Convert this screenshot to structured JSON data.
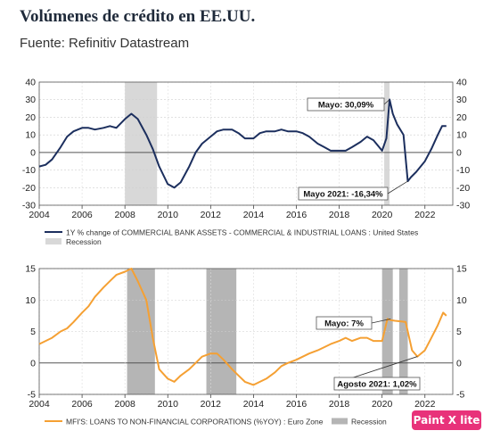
{
  "title": "Volúmenes de crédito en EE.UU.",
  "source": "Fuente: Refinitiv Datastream",
  "watermark": "Paint X lite",
  "colors": {
    "us_line": "#1c2f5e",
    "ez_line": "#f5a033",
    "recession_us": "#d8d8d8",
    "recession_ez": "#b5b5b5"
  },
  "chart_data": [
    {
      "type": "line",
      "x_ticks": [
        "2004",
        "2006",
        "2008",
        "2010",
        "2012",
        "2014",
        "2016",
        "2018",
        "2020",
        "2022"
      ],
      "ylim": [
        -30,
        40
      ],
      "y_ticks": [
        "-30",
        "-20",
        "-10",
        "0",
        "10",
        "20",
        "30",
        "40"
      ],
      "grid": true,
      "series": [
        {
          "name": "1Y % change of COMMERCIAL BANK ASSETS - COMMERCIAL & INDUSTRIAL LOANS : United States",
          "x": [
            2004.0,
            2004.3,
            2004.6,
            2005.0,
            2005.3,
            2005.6,
            2006.0,
            2006.3,
            2006.6,
            2007.0,
            2007.3,
            2007.6,
            2008.0,
            2008.3,
            2008.6,
            2009.0,
            2009.3,
            2009.6,
            2010.0,
            2010.3,
            2010.6,
            2011.0,
            2011.3,
            2011.6,
            2012.0,
            2012.3,
            2012.6,
            2013.0,
            2013.3,
            2013.6,
            2014.0,
            2014.3,
            2014.6,
            2015.0,
            2015.3,
            2015.6,
            2016.0,
            2016.3,
            2016.6,
            2017.0,
            2017.3,
            2017.6,
            2018.0,
            2018.3,
            2018.6,
            2019.0,
            2019.3,
            2019.6,
            2020.0,
            2020.2,
            2020.35,
            2020.5,
            2020.7,
            2021.0,
            2021.2,
            2021.35,
            2021.6,
            2022.0,
            2022.3,
            2022.6,
            2022.8,
            2023.0
          ],
          "y": [
            -8,
            -7,
            -4,
            3,
            9,
            12,
            14,
            14,
            13,
            14,
            15,
            14,
            19,
            22,
            19,
            10,
            2,
            -8,
            -18,
            -20,
            -17,
            -8,
            0,
            5,
            9,
            12,
            13,
            13,
            11,
            8,
            8,
            11,
            12,
            12,
            13,
            12,
            12,
            11,
            9,
            5,
            3,
            1,
            1,
            1,
            3,
            6,
            9,
            7,
            1,
            8,
            30.09,
            22,
            16,
            10,
            -16.34,
            -14,
            -11,
            -5,
            2,
            10,
            15,
            15
          ]
        }
      ],
      "recessions": [
        [
          2008.0,
          2009.5
        ],
        [
          2020.1,
          2020.35
        ]
      ],
      "annotations": [
        {
          "text": "Mayo: 30,09%",
          "x": 2020.35,
          "y": 30.09
        },
        {
          "text": "Mayo 2021: -16,34%",
          "x": 2021.2,
          "y": -16.34
        }
      ],
      "legend": [
        "1Y % change of COMMERCIAL BANK ASSETS - COMMERCIAL & INDUSTRIAL LOANS : United States",
        "Recession"
      ]
    },
    {
      "type": "line",
      "x_ticks": [
        "2004",
        "2006",
        "2008",
        "2010",
        "2012",
        "2014",
        "2016",
        "2018",
        "2020",
        "2022"
      ],
      "ylim": [
        -5,
        15
      ],
      "y_ticks": [
        "-5",
        "0",
        "5",
        "10",
        "15"
      ],
      "grid": true,
      "series": [
        {
          "name": "MFI'S: LOANS TO NON-FINANCIAL CORPORATIONS (%YOY) : Euro Zone",
          "x": [
            2004.0,
            2004.3,
            2004.6,
            2005.0,
            2005.3,
            2005.6,
            2006.0,
            2006.3,
            2006.6,
            2007.0,
            2007.3,
            2007.6,
            2008.0,
            2008.3,
            2008.6,
            2009.0,
            2009.3,
            2009.6,
            2010.0,
            2010.3,
            2010.6,
            2011.0,
            2011.3,
            2011.6,
            2012.0,
            2012.3,
            2012.6,
            2013.0,
            2013.3,
            2013.6,
            2014.0,
            2014.3,
            2014.6,
            2015.0,
            2015.3,
            2015.6,
            2016.0,
            2016.3,
            2016.6,
            2017.0,
            2017.3,
            2017.6,
            2018.0,
            2018.3,
            2018.6,
            2019.0,
            2019.3,
            2019.6,
            2020.0,
            2020.25,
            2020.4,
            2020.6,
            2020.9,
            2021.1,
            2021.4,
            2021.65,
            2022.0,
            2022.3,
            2022.6,
            2022.85,
            2023.0
          ],
          "y": [
            3,
            3.5,
            4,
            5,
            5.5,
            6.5,
            8,
            9,
            10.5,
            12,
            13,
            14,
            14.5,
            15,
            13,
            10,
            4,
            -1,
            -2.5,
            -3,
            -2,
            -1,
            0,
            1,
            1.5,
            1.5,
            0.5,
            -1,
            -2,
            -3,
            -3.5,
            -3,
            -2.5,
            -1.5,
            -0.5,
            0,
            0.5,
            1,
            1.5,
            2,
            2.5,
            3,
            3.5,
            4,
            3.5,
            4,
            4,
            3.5,
            3.5,
            7,
            6.8,
            6.7,
            6.6,
            6.5,
            2,
            1.02,
            2,
            4,
            6,
            8,
            7.5
          ]
        }
      ],
      "recessions": [
        [
          2008.1,
          2009.4
        ],
        [
          2011.8,
          2013.2
        ],
        [
          2020.0,
          2020.5
        ],
        [
          2020.8,
          2021.2
        ]
      ],
      "annotations": [
        {
          "text": "Mayo: 7%",
          "x": 2020.4,
          "y": 7
        },
        {
          "text": "Agosto 2021: 1,02%",
          "x": 2021.65,
          "y": 1.02
        }
      ],
      "legend": [
        "MFI'S: LOANS TO NON-FINANCIAL CORPORATIONS (%YOY) : Euro Zone",
        "Recession"
      ]
    }
  ]
}
